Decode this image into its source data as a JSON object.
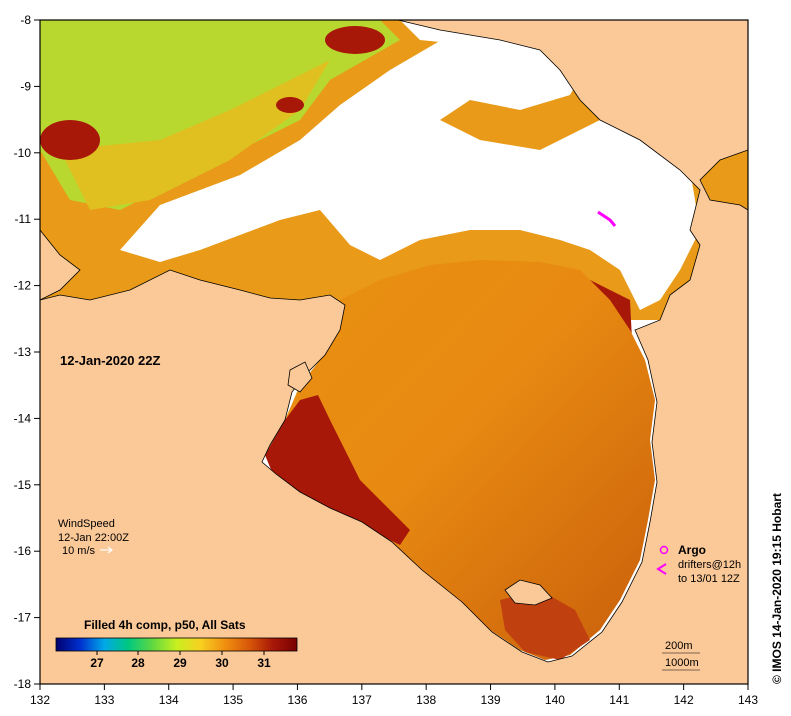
{
  "map": {
    "date_label": "12-Jan-2020 22Z",
    "lon_ticks": [
      "132",
      "133",
      "134",
      "135",
      "136",
      "137",
      "138",
      "139",
      "140",
      "141",
      "142",
      "143"
    ],
    "lat_ticks": [
      "-8",
      "-9",
      "-10",
      "-11",
      "-12",
      "-13",
      "-14",
      "-15",
      "-16",
      "-17",
      "-18"
    ],
    "colors": {
      "land": "#fbc898",
      "cloud": "#ffffff",
      "frame": "#000000"
    }
  },
  "wind": {
    "title": "WindSpeed",
    "time": "12-Jan 22:00Z",
    "scale": "10 m/s"
  },
  "colorbar": {
    "title": "Filled 4h comp, p50, All Sats",
    "ticks": [
      "27",
      "28",
      "29",
      "30",
      "31"
    ],
    "stops": [
      "#00006e",
      "#0030d0",
      "#00a8e8",
      "#00c880",
      "#60d840",
      "#c8f020",
      "#f8d020",
      "#f09010",
      "#d85808",
      "#a81808",
      "#780000"
    ]
  },
  "legend": {
    "argo": "Argo",
    "drifters": "drifters@12h",
    "drifters_to": "to 13/01 12Z",
    "depth_200": "200m",
    "depth_1000": "1000m"
  },
  "credit": "© IMOS 14-Jan-2020 19:15 Hobart"
}
